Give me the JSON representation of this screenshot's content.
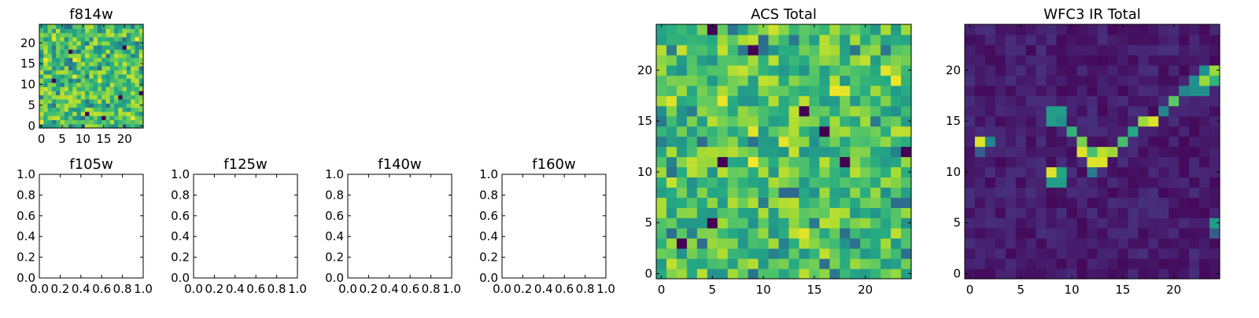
{
  "chart_data": [
    {
      "id": "f814w",
      "type": "heatmap",
      "title": "f814w",
      "grid_size": 25,
      "colormap": "viridis",
      "xticks": [
        0,
        5,
        10,
        15,
        20
      ],
      "yticks": [
        0,
        5,
        10,
        15,
        20
      ],
      "xlim": [
        -0.5,
        24.5
      ],
      "ylim": [
        -0.5,
        24.5
      ],
      "pattern": "noisy-high",
      "seed": 11,
      "dark_cells": [
        [
          7,
          18
        ],
        [
          11,
          3
        ],
        [
          20,
          19
        ],
        [
          15,
          2
        ],
        [
          24,
          8
        ],
        [
          3,
          11
        ],
        [
          19,
          7
        ]
      ]
    },
    {
      "id": "f105w",
      "type": "empty",
      "title": "f105w",
      "xticks": [
        "0.0",
        "0.2",
        "0.4",
        "0.6",
        "0.8",
        "1.0"
      ],
      "yticks": [
        "0.0",
        "0.2",
        "0.4",
        "0.6",
        "0.8",
        "1.0"
      ],
      "xlim": [
        0,
        1
      ],
      "ylim": [
        0,
        1
      ]
    },
    {
      "id": "f125w",
      "type": "empty",
      "title": "f125w",
      "xticks": [
        "0.0",
        "0.2",
        "0.4",
        "0.6",
        "0.8",
        "1.0"
      ],
      "yticks": [
        "0.0",
        "0.2",
        "0.4",
        "0.6",
        "0.8",
        "1.0"
      ],
      "xlim": [
        0,
        1
      ],
      "ylim": [
        0,
        1
      ]
    },
    {
      "id": "f140w",
      "type": "empty",
      "title": "f140w",
      "xticks": [
        "0.0",
        "0.2",
        "0.4",
        "0.6",
        "0.8",
        "1.0"
      ],
      "yticks": [
        "0.0",
        "0.2",
        "0.4",
        "0.6",
        "0.8",
        "1.0"
      ],
      "xlim": [
        0,
        1
      ],
      "ylim": [
        0,
        1
      ]
    },
    {
      "id": "f160w",
      "type": "empty",
      "title": "f160w",
      "xticks": [
        "0.0",
        "0.2",
        "0.4",
        "0.6",
        "0.8",
        "1.0"
      ],
      "yticks": [
        "0.0",
        "0.2",
        "0.4",
        "0.6",
        "0.8",
        "1.0"
      ],
      "xlim": [
        0,
        1
      ],
      "ylim": [
        0,
        1
      ]
    },
    {
      "id": "acs-total",
      "type": "heatmap",
      "title": "ACS Total",
      "grid_size": 25,
      "colormap": "viridis",
      "xticks": [
        0,
        5,
        10,
        15,
        20
      ],
      "yticks": [
        0,
        5,
        10,
        15,
        20
      ],
      "xlim": [
        -0.5,
        24.5
      ],
      "ylim": [
        -0.5,
        24.5
      ],
      "pattern": "noisy-high",
      "seed": 29,
      "dark_cells": [
        [
          5,
          24
        ],
        [
          9,
          22
        ],
        [
          16,
          14
        ],
        [
          14,
          16
        ],
        [
          5,
          5
        ],
        [
          2,
          3
        ],
        [
          6,
          11
        ],
        [
          24,
          12
        ],
        [
          18,
          11
        ]
      ]
    },
    {
      "id": "wfc3-ir-total",
      "type": "heatmap",
      "title": "WFC3 IR Total",
      "grid_size": 25,
      "colormap": "viridis",
      "xticks": [
        0,
        5,
        10,
        15,
        20
      ],
      "yticks": [
        0,
        5,
        10,
        15,
        20
      ],
      "xlim": [
        -0.5,
        24.5
      ],
      "ylim": [
        -0.5,
        24.5
      ],
      "pattern": "low-background",
      "seed": 53,
      "bright_cells": [
        {
          "x": 1,
          "y": 13,
          "v": 0.95
        },
        {
          "x": 2,
          "y": 13,
          "v": 0.45
        },
        {
          "x": 1,
          "y": 12,
          "v": 0.3
        },
        {
          "x": 8,
          "y": 16,
          "v": 0.55
        },
        {
          "x": 9,
          "y": 16,
          "v": 0.55
        },
        {
          "x": 8,
          "y": 15,
          "v": 0.55
        },
        {
          "x": 9,
          "y": 15,
          "v": 0.5
        },
        {
          "x": 10,
          "y": 14,
          "v": 0.65
        },
        {
          "x": 11,
          "y": 13,
          "v": 0.8
        },
        {
          "x": 11,
          "y": 12,
          "v": 0.95
        },
        {
          "x": 12,
          "y": 12,
          "v": 0.7
        },
        {
          "x": 13,
          "y": 12,
          "v": 0.9
        },
        {
          "x": 12,
          "y": 11,
          "v": 0.95
        },
        {
          "x": 13,
          "y": 11,
          "v": 0.95
        },
        {
          "x": 14,
          "y": 12,
          "v": 0.85
        },
        {
          "x": 12,
          "y": 10,
          "v": 0.4
        },
        {
          "x": 15,
          "y": 13,
          "v": 0.7
        },
        {
          "x": 16,
          "y": 14,
          "v": 0.6
        },
        {
          "x": 17,
          "y": 15,
          "v": 0.85
        },
        {
          "x": 18,
          "y": 15,
          "v": 0.95
        },
        {
          "x": 19,
          "y": 16,
          "v": 0.45
        },
        {
          "x": 20,
          "y": 17,
          "v": 0.75
        },
        {
          "x": 21,
          "y": 18,
          "v": 0.45
        },
        {
          "x": 22,
          "y": 18,
          "v": 0.5
        },
        {
          "x": 23,
          "y": 18,
          "v": 0.5
        },
        {
          "x": 22,
          "y": 19,
          "v": 0.5
        },
        {
          "x": 23,
          "y": 19,
          "v": 0.85
        },
        {
          "x": 24,
          "y": 19,
          "v": 0.65
        },
        {
          "x": 24,
          "y": 20,
          "v": 0.85
        },
        {
          "x": 23,
          "y": 20,
          "v": 0.5
        },
        {
          "x": 8,
          "y": 10,
          "v": 0.95
        },
        {
          "x": 9,
          "y": 10,
          "v": 0.6
        },
        {
          "x": 8,
          "y": 9,
          "v": 0.55
        },
        {
          "x": 9,
          "y": 9,
          "v": 0.55
        },
        {
          "x": 24,
          "y": 5,
          "v": 0.55
        },
        {
          "x": 24,
          "y": 4,
          "v": 0.3
        }
      ]
    }
  ]
}
